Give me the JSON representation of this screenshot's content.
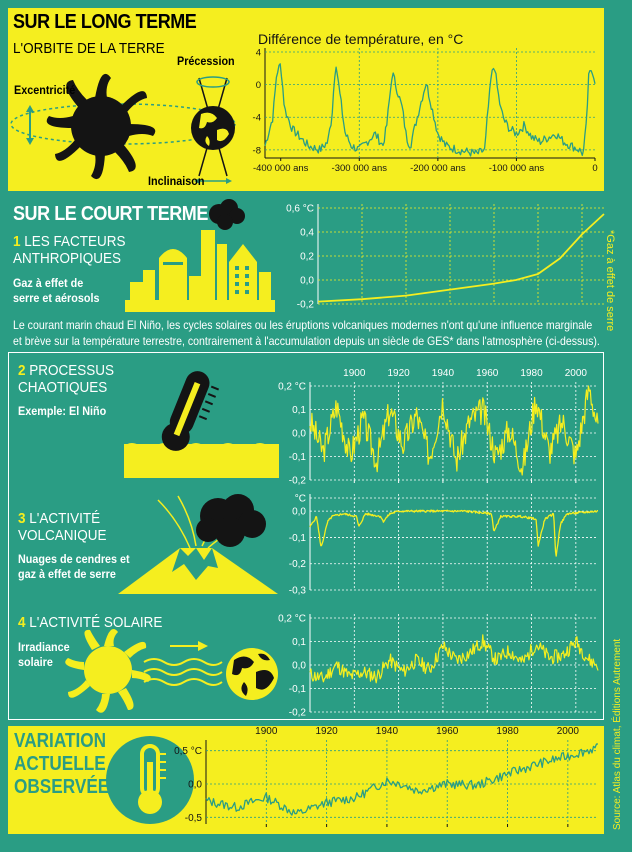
{
  "section1": {
    "title": "SUR LE LONG TERME",
    "subtitle": "L'ORBITE DE LA TERRE",
    "labels": {
      "eccentricity": "Excentricité",
      "precession": "Précession",
      "inclination": "Inclinaison"
    }
  },
  "section2": {
    "title": "SUR LE COURT TERME",
    "factor1": {
      "num": "1",
      "line1": "LES FACTEURS",
      "line2": "ANTHROPIQUES",
      "desc1": "Gaz à effet de",
      "desc2": "serre et aérosols"
    },
    "side_note": "*Gaz à effet de serre",
    "paragraph1": "Le courant marin chaud El Niño, les cycles solaires ou les éruptions volcaniques modernes n'ont qu'une influence marginale",
    "paragraph2": "et brève sur la température terrestre, contrairement à l'accumulation depuis un siècle de GES* dans l'atmosphère (ci-dessus)."
  },
  "section3": {
    "factor2": {
      "num": "2",
      "line1": "PROCESSUS",
      "line2": "CHAOTIQUES",
      "desc1": "Exemple: El Niño"
    },
    "factor3": {
      "num": "3",
      "line1": "L'ACTIVITÉ",
      "line2": "VOLCANIQUE",
      "desc1": "Nuages de cendres et",
      "desc2": "gaz à effet de serre"
    },
    "factor4": {
      "num": "4",
      "line1": "L'ACTIVITÉ SOLAIRE",
      "desc1": "Irradiance",
      "desc2": "solaire"
    }
  },
  "section4": {
    "line1": "VARIATION",
    "line2": "ACTUELLE",
    "line3": "OBSERVÉE"
  },
  "source": "Source: Atlas du climat, Éditions Autrement",
  "colors": {
    "background": "#2a9d84",
    "yellow": "#f5ee1f",
    "dark": "#141414",
    "line_teal": "#2a9d84"
  },
  "chart_data": [
    {
      "id": "long-term",
      "type": "line",
      "title": "Différence de température, en °C",
      "xlim": [
        -420000,
        0
      ],
      "ylim": [
        -9,
        4
      ],
      "xticks": [
        -400000,
        -300000,
        -200000,
        -100000,
        0
      ],
      "xtick_labels": [
        "-400 000 ans",
        "-300 000 ans",
        "-200 000 ans",
        "-100 000 ans",
        "0"
      ],
      "yticks": [
        4,
        0,
        -4,
        -8
      ],
      "ytick_labels": [
        "4",
        "0",
        "-4",
        "-8"
      ],
      "grid": "dotted vertical and horizontal",
      "x": [
        -420000,
        -410000,
        -405000,
        -400000,
        -395000,
        -385000,
        -375000,
        -365000,
        -350000,
        -340000,
        -335000,
        -330000,
        -325000,
        -318000,
        -310000,
        -300000,
        -290000,
        -280000,
        -270000,
        -265000,
        -258000,
        -245000,
        -240000,
        -235000,
        -225000,
        -215000,
        -200000,
        -190000,
        -175000,
        -160000,
        -150000,
        -140000,
        -137000,
        -132000,
        -128000,
        -125000,
        -120000,
        -115000,
        -108000,
        -100000,
        -90000,
        -80000,
        -70000,
        -60000,
        -50000,
        -40000,
        -30000,
        -20000,
        -15000,
        -11000,
        -8000,
        -4000,
        0
      ],
      "y": [
        -7.5,
        -4,
        1.5,
        2.5,
        -3,
        -5.5,
        -6.5,
        -7.5,
        -8,
        -7,
        -4,
        3,
        -1,
        -6,
        -7.5,
        -8,
        -7,
        -6,
        -7.5,
        -5,
        1.5,
        -3,
        -6.5,
        -7.5,
        -3.5,
        0.3,
        -6,
        -7.5,
        -8,
        -8.3,
        -8.5,
        -8,
        -4,
        1,
        2.5,
        0,
        -3,
        -4.5,
        -5.5,
        -6,
        -5,
        -6.5,
        -7,
        -6.5,
        -6,
        -7,
        -7.5,
        -8,
        -8.5,
        -5,
        1,
        2,
        0.5
      ]
    },
    {
      "id": "anthropic",
      "type": "line",
      "ylim": [
        -0.2,
        0.6
      ],
      "yticks": [
        0.6,
        0.4,
        0.2,
        0,
        -0.2
      ],
      "ytick_labels": [
        "0,6 °C",
        "0,4",
        "0,2",
        "0,0",
        "-0,2"
      ],
      "xlim": [
        1880,
        2010
      ],
      "x": [
        1880,
        1900,
        1920,
        1940,
        1960,
        1970,
        1980,
        1990,
        2000,
        2010
      ],
      "y": [
        -0.18,
        -0.16,
        -0.13,
        -0.08,
        -0.03,
        0,
        0.05,
        0.18,
        0.38,
        0.55
      ]
    },
    {
      "id": "el-nino",
      "type": "line",
      "xlim": [
        1880,
        2010
      ],
      "ylim": [
        -0.2,
        0.2
      ],
      "xticks": [
        1900,
        1920,
        1940,
        1960,
        1980,
        2000
      ],
      "xtick_labels": [
        "1900",
        "1920",
        "1940",
        "1960",
        "1980",
        "2000"
      ],
      "yticks": [
        0.2,
        0.1,
        0,
        -0.1,
        -0.2
      ],
      "ytick_labels": [
        "0,2 °C",
        "0,1",
        "0,0",
        "-0,1",
        "-0,2"
      ],
      "x": [
        1880,
        1886,
        1892,
        1898,
        1904,
        1910,
        1916,
        1922,
        1928,
        1934,
        1940,
        1946,
        1952,
        1958,
        1964,
        1970,
        1976,
        1982,
        1988,
        1994,
        2000,
        2006,
        2010
      ],
      "y": [
        0.05,
        -0.08,
        0.12,
        -0.1,
        0.06,
        -0.12,
        0.1,
        -0.05,
        0.08,
        -0.1,
        0.14,
        -0.12,
        0.05,
        0.1,
        -0.1,
        0.02,
        -0.15,
        0.15,
        -0.08,
        0.05,
        -0.1,
        0.2,
        0.02
      ]
    },
    {
      "id": "volcanic",
      "type": "line",
      "xlim": [
        1880,
        2010
      ],
      "ylim": [
        -0.3,
        0.05
      ],
      "yticks": [
        0.05,
        0,
        -0.1,
        -0.2,
        -0.3
      ],
      "ytick_labels": [
        "°C",
        "0,0",
        "-0,1",
        "-0,2",
        "-0,3"
      ],
      "x": [
        1880,
        1883,
        1885,
        1888,
        1890,
        1895,
        1901,
        1902,
        1905,
        1912,
        1913,
        1916,
        1920,
        1935,
        1950,
        1962,
        1963,
        1966,
        1975,
        1982,
        1983,
        1986,
        1990,
        1991,
        1993,
        1996,
        2010
      ],
      "y": [
        -0.06,
        -0.02,
        -0.14,
        -0.04,
        -0.02,
        -0.01,
        -0.02,
        -0.06,
        -0.01,
        -0.02,
        -0.04,
        -0.01,
        0,
        0,
        0,
        -0.01,
        -0.08,
        -0.02,
        -0.02,
        -0.03,
        -0.13,
        -0.03,
        -0.01,
        -0.18,
        -0.05,
        -0.01,
        0
      ]
    },
    {
      "id": "solar",
      "type": "line",
      "xlim": [
        1880,
        2010
      ],
      "ylim": [
        -0.2,
        0.2
      ],
      "yticks": [
        0.2,
        0.1,
        0,
        -0.1,
        -0.2
      ],
      "ytick_labels": [
        "0,2 °C",
        "0,1",
        "0,0",
        "-0,1",
        "-0,2"
      ],
      "x": [
        1880,
        1886,
        1892,
        1898,
        1904,
        1910,
        1916,
        1922,
        1928,
        1934,
        1940,
        1946,
        1952,
        1958,
        1964,
        1970,
        1976,
        1982,
        1988,
        1994,
        2000,
        2006,
        2010
      ],
      "y": [
        -0.04,
        -0.06,
        0,
        -0.05,
        -0.03,
        -0.05,
        0.02,
        -0.03,
        0.02,
        -0.02,
        0.08,
        0.02,
        0.05,
        0.1,
        0.02,
        0.06,
        0.01,
        0.09,
        0.03,
        0.04,
        0.1,
        0.02,
        0
      ]
    },
    {
      "id": "observed",
      "type": "line",
      "xlim": [
        1880,
        2010
      ],
      "ylim": [
        -0.6,
        0.6
      ],
      "xticks": [
        1900,
        1920,
        1940,
        1960,
        1980,
        2000
      ],
      "xtick_labels": [
        "1900",
        "1920",
        "1940",
        "1960",
        "1980",
        "2000"
      ],
      "yticks": [
        0.5,
        0,
        -0.5
      ],
      "ytick_labels": [
        "0,5 °C",
        "0,0",
        "-0,5"
      ],
      "x": [
        1880,
        1890,
        1900,
        1910,
        1920,
        1930,
        1940,
        1945,
        1950,
        1960,
        1970,
        1980,
        1990,
        2000,
        2010
      ],
      "y": [
        -0.25,
        -0.35,
        -0.2,
        -0.45,
        -0.28,
        -0.2,
        0.05,
        0.0,
        -0.1,
        0.0,
        -0.02,
        0.15,
        0.3,
        0.42,
        0.55
      ]
    }
  ]
}
